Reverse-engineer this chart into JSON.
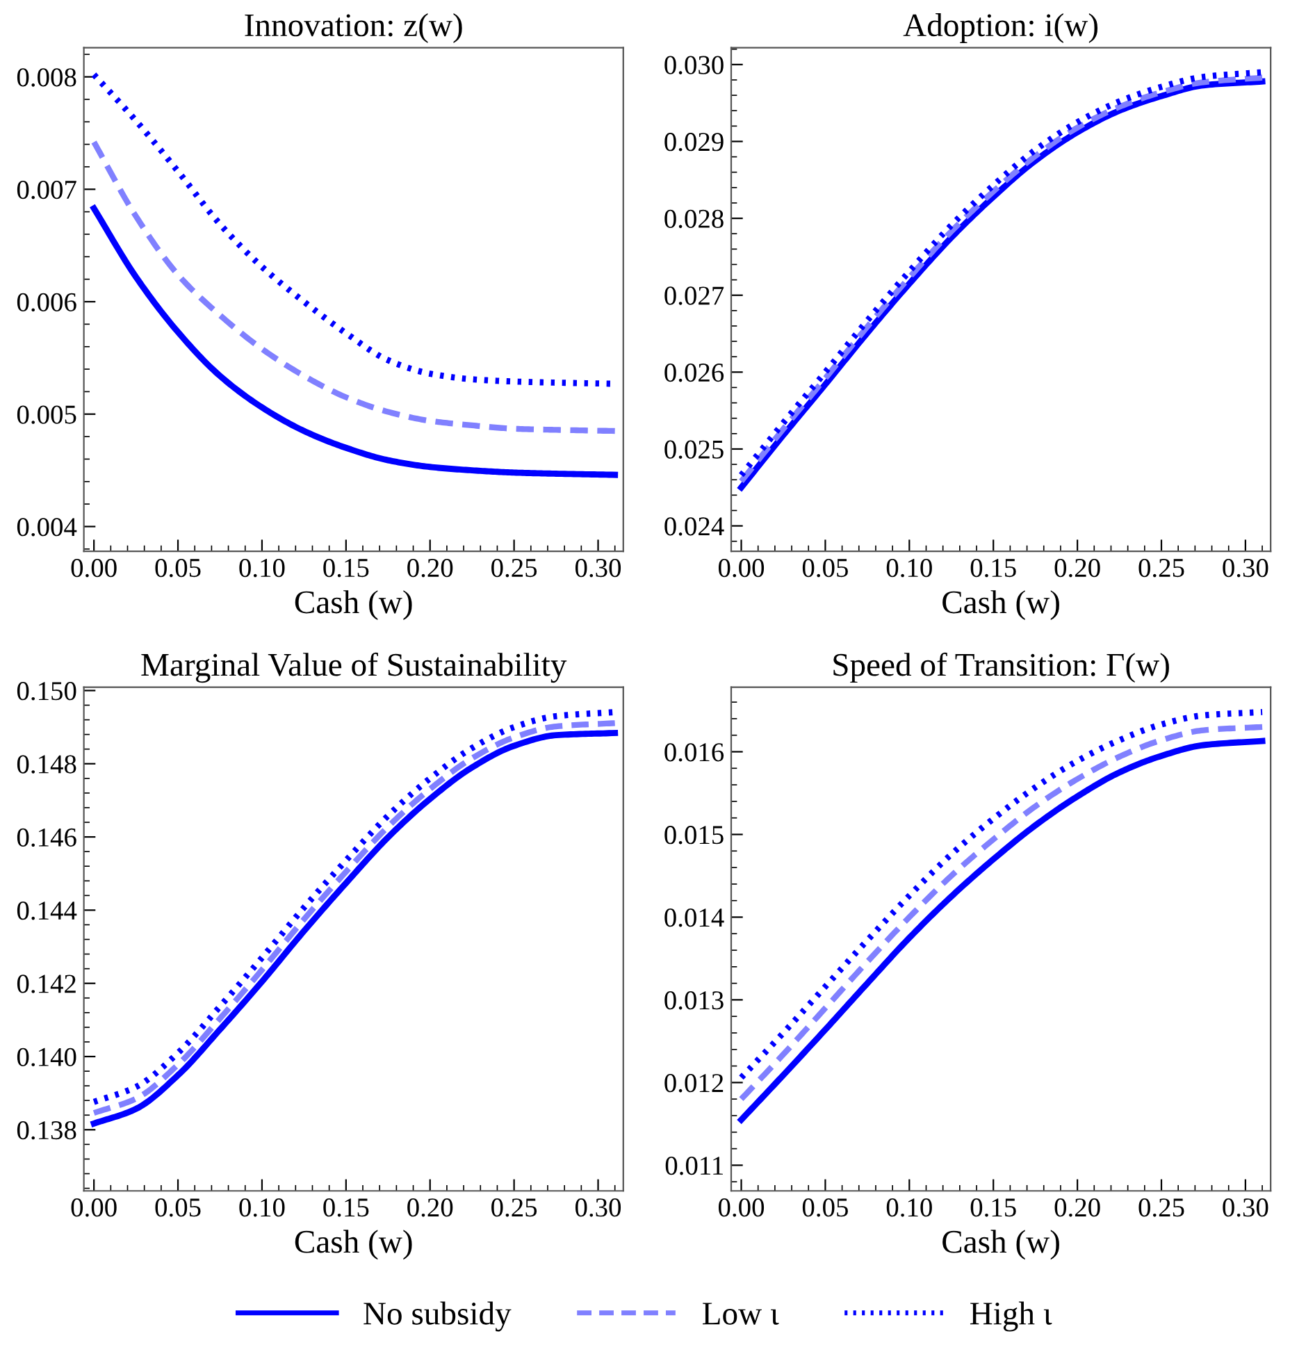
{
  "chart_data": [
    {
      "type": "line",
      "title": "Innovation: z(w)",
      "xlabel": "Cash (w)",
      "legend": "bottom",
      "x": [
        0,
        0.025,
        0.05,
        0.075,
        0.1,
        0.125,
        0.15,
        0.175,
        0.2,
        0.225,
        0.25,
        0.275,
        0.31
      ],
      "series": [
        {
          "name": "No subsidy",
          "color": "#0000ff",
          "line_style": "solid",
          "values": [
            0.00683,
            0.00622,
            0.00573,
            0.00534,
            0.00506,
            0.00485,
            0.0047,
            0.00459,
            0.00453,
            0.0045,
            0.00448,
            0.00447,
            0.00446
          ]
        },
        {
          "name": "Low ι",
          "color": "#8080ff",
          "line_style": "dashed",
          "values": [
            0.00742,
            0.00676,
            0.00624,
            0.00588,
            0.00558,
            0.00534,
            0.00515,
            0.00502,
            0.00494,
            0.0049,
            0.00487,
            0.00486,
            0.00485
          ]
        },
        {
          "name": "High ι",
          "color": "#0000ff",
          "line_style": "dotted",
          "values": [
            0.00802,
            0.00761,
            0.00716,
            0.00669,
            0.00631,
            0.006,
            0.00572,
            0.00548,
            0.00536,
            0.00531,
            0.00529,
            0.00528,
            0.00527
          ]
        }
      ],
      "xlim": [
        -0.006,
        0.315
      ],
      "xticks": [
        {
          "value": 0,
          "label": "0.00"
        },
        {
          "value": 0.05,
          "label": "0.05"
        },
        {
          "value": 0.1,
          "label": "0.10"
        },
        {
          "value": 0.15,
          "label": "0.15"
        },
        {
          "value": 0.2,
          "label": "0.20"
        },
        {
          "value": 0.25,
          "label": "0.25"
        },
        {
          "value": 0.3,
          "label": "0.30"
        }
      ],
      "ylim": [
        0.00378,
        0.00826
      ],
      "yticks": [
        0.004,
        0.005,
        0.006,
        0.007,
        0.008
      ],
      "grid": false
    },
    {
      "type": "line",
      "title": "Adoption: i(w)",
      "xlabel": "Cash (w)",
      "x": [
        0,
        0.025,
        0.05,
        0.075,
        0.1,
        0.125,
        0.15,
        0.175,
        0.2,
        0.225,
        0.25,
        0.275,
        0.31
      ],
      "series": [
        {
          "color": "#0000ff",
          "line_style": "solid",
          "values": [
            0.0245,
            0.02518,
            0.02584,
            0.02651,
            0.02715,
            0.02775,
            0.02828,
            0.02875,
            0.02912,
            0.0294,
            0.02959,
            0.02973,
            0.02978
          ]
        },
        {
          "color": "#8080ff",
          "line_style": "dashed",
          "values": [
            0.02458,
            0.02526,
            0.02592,
            0.02659,
            0.02723,
            0.02783,
            0.02835,
            0.02881,
            0.02918,
            0.02945,
            0.02964,
            0.02977,
            0.02983
          ]
        },
        {
          "color": "#0000ff",
          "line_style": "dotted",
          "values": [
            0.02466,
            0.02534,
            0.026,
            0.02667,
            0.02731,
            0.02791,
            0.02843,
            0.02889,
            0.02925,
            0.02952,
            0.02971,
            0.02984,
            0.0299
          ]
        }
      ],
      "xlim": [
        -0.006,
        0.315
      ],
      "xticks": [
        {
          "value": 0,
          "label": "0.00"
        },
        {
          "value": 0.05,
          "label": "0.05"
        },
        {
          "value": 0.1,
          "label": "0.10"
        },
        {
          "value": 0.15,
          "label": "0.15"
        },
        {
          "value": 0.2,
          "label": "0.20"
        },
        {
          "value": 0.25,
          "label": "0.25"
        },
        {
          "value": 0.3,
          "label": "0.30"
        }
      ],
      "ylim": [
        0.02367,
        0.03022
      ],
      "yticks": [
        0.024,
        0.025,
        0.026,
        0.027,
        0.028,
        0.029,
        {
          "value": 0.03,
          "label": "0.030"
        }
      ],
      "grid": false
    },
    {
      "type": "line",
      "title": "Marginal Value of Sustainability",
      "xlabel": "Cash (w)",
      "x": [
        0,
        0.025,
        0.05,
        0.075,
        0.1,
        0.125,
        0.15,
        0.175,
        0.2,
        0.225,
        0.25,
        0.275,
        0.31
      ],
      "series": [
        {
          "color": "#0000ff",
          "line_style": "solid",
          "values": [
            0.13817,
            0.13857,
            0.13949,
            0.14074,
            0.14205,
            0.14343,
            0.14474,
            0.14599,
            0.14704,
            0.1479,
            0.14849,
            0.14878,
            0.14884
          ]
        },
        {
          "color": "#8080ff",
          "line_style": "dashed",
          "values": [
            0.13846,
            0.13885,
            0.13978,
            0.14104,
            0.14237,
            0.14375,
            0.14505,
            0.14628,
            0.14731,
            0.14815,
            0.14872,
            0.14902,
            0.14911
          ]
        },
        {
          "color": "#0000ff",
          "line_style": "dotted",
          "values": [
            0.13876,
            0.13917,
            0.1401,
            0.14137,
            0.1427,
            0.14407,
            0.14536,
            0.14658,
            0.1476,
            0.14843,
            0.149,
            0.1493,
            0.14941
          ]
        }
      ],
      "xlim": [
        -0.006,
        0.315
      ],
      "xticks": [
        {
          "value": 0,
          "label": "0.00"
        },
        {
          "value": 0.05,
          "label": "0.05"
        },
        {
          "value": 0.1,
          "label": "0.10"
        },
        {
          "value": 0.15,
          "label": "0.15"
        },
        {
          "value": 0.2,
          "label": "0.20"
        },
        {
          "value": 0.25,
          "label": "0.25"
        },
        {
          "value": 0.3,
          "label": "0.30"
        }
      ],
      "ylim": [
        0.13633,
        0.15009
      ],
      "yticks": [
        0.138,
        {
          "value": 0.14,
          "label": "0.140"
        },
        0.142,
        0.144,
        0.146,
        0.148,
        {
          "value": 0.15,
          "label": "0.150"
        }
      ],
      "grid": false
    },
    {
      "type": "line",
      "title": "Speed of Transition: Γ(w)",
      "xlabel": "Cash (w)",
      "x": [
        0,
        0.025,
        0.05,
        0.075,
        0.1,
        0.125,
        0.15,
        0.175,
        0.2,
        0.225,
        0.25,
        0.275,
        0.31
      ],
      "series": [
        {
          "color": "#0000ff",
          "line_style": "solid",
          "values": [
            0.01155,
            0.01209,
            0.01264,
            0.0132,
            0.01375,
            0.01425,
            0.0147,
            0.01511,
            0.01546,
            0.01575,
            0.01595,
            0.01608,
            0.01613
          ]
        },
        {
          "color": "#8080ff",
          "line_style": "dashed",
          "values": [
            0.0118,
            0.01234,
            0.0129,
            0.01346,
            0.014,
            0.0145,
            0.01494,
            0.01534,
            0.01567,
            0.01594,
            0.01614,
            0.01626,
            0.0163
          ]
        },
        {
          "color": "#0000ff",
          "line_style": "dotted",
          "values": [
            0.01206,
            0.0126,
            0.01316,
            0.01372,
            0.01426,
            0.01476,
            0.01519,
            0.01557,
            0.01589,
            0.01614,
            0.01633,
            0.01644,
            0.01648
          ]
        }
      ],
      "xlim": [
        -0.006,
        0.315
      ],
      "xticks": [
        {
          "value": 0,
          "label": "0.00"
        },
        {
          "value": 0.05,
          "label": "0.05"
        },
        {
          "value": 0.1,
          "label": "0.10"
        },
        {
          "value": 0.15,
          "label": "0.15"
        },
        {
          "value": 0.2,
          "label": "0.20"
        },
        {
          "value": 0.25,
          "label": "0.25"
        },
        {
          "value": 0.3,
          "label": "0.30"
        }
      ],
      "ylim": [
        0.01069,
        0.01678
      ],
      "yticks": [
        0.011,
        0.012,
        0.013,
        0.014,
        0.015,
        0.016
      ],
      "grid": false
    }
  ]
}
